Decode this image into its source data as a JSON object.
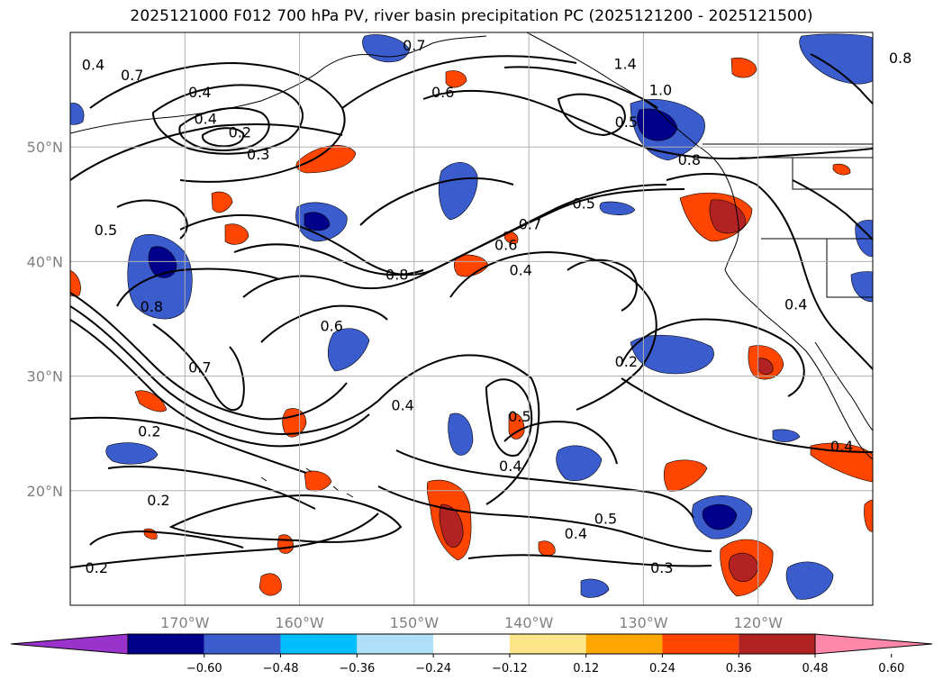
{
  "title": "2025121000 F012 700 hPa PV, river basin precipitation PC (2025121200 - 2025121500)",
  "map": {
    "lon_range": [
      -180,
      -110
    ],
    "lat_range": [
      10,
      60
    ],
    "lat_ticks": [
      {
        "lat": 50,
        "label": "50°N"
      },
      {
        "lat": 40,
        "label": "40°N"
      },
      {
        "lat": 30,
        "label": "30°N"
      },
      {
        "lat": 20,
        "label": "20°N"
      }
    ],
    "lon_ticks": [
      {
        "lon": -170,
        "label": "170°W"
      },
      {
        "lon": -160,
        "label": "160°W"
      },
      {
        "lon": -150,
        "label": "150°W"
      },
      {
        "lon": -140,
        "label": "140°W"
      },
      {
        "lon": -130,
        "label": "130°W"
      },
      {
        "lon": -120,
        "label": "120°W"
      }
    ],
    "grid": true,
    "gridline_color": "#b0b0b0",
    "contour_labels": [
      {
        "text": "0.4",
        "lon": -178.0,
        "lat": 57.2
      },
      {
        "text": "0.7",
        "lon": -174.6,
        "lat": 56.3
      },
      {
        "text": "0.4",
        "lon": -168.7,
        "lat": 54.8
      },
      {
        "text": "0.4",
        "lon": -168.2,
        "lat": 52.5
      },
      {
        "text": "0.2",
        "lon": -165.2,
        "lat": 51.3
      },
      {
        "text": "0.3",
        "lon": -163.6,
        "lat": 49.4
      },
      {
        "text": "0.7",
        "lon": -150.0,
        "lat": 58.9
      },
      {
        "text": "0.6",
        "lon": -147.5,
        "lat": 54.8
      },
      {
        "text": "1.4",
        "lon": -131.6,
        "lat": 57.3
      },
      {
        "text": "1.0",
        "lon": -128.5,
        "lat": 55.0
      },
      {
        "text": "0.5",
        "lon": -131.5,
        "lat": 52.2
      },
      {
        "text": "0.8",
        "lon": -126.0,
        "lat": 48.9
      },
      {
        "text": "0.8",
        "lon": -107.6,
        "lat": 57.8
      },
      {
        "text": "0.5",
        "lon": -135.2,
        "lat": 45.1
      },
      {
        "text": "0.7",
        "lon": -139.9,
        "lat": 43.3
      },
      {
        "text": "0.6",
        "lon": -142.0,
        "lat": 41.5
      },
      {
        "text": "0.4",
        "lon": -140.7,
        "lat": 39.3
      },
      {
        "text": "0.8",
        "lon": -151.5,
        "lat": 38.9
      },
      {
        "text": "0.5",
        "lon": -176.9,
        "lat": 42.8
      },
      {
        "text": "0.8",
        "lon": -172.9,
        "lat": 36.1
      },
      {
        "text": "0.6",
        "lon": -157.2,
        "lat": 34.4
      },
      {
        "text": "0.7",
        "lon": -168.7,
        "lat": 30.8
      },
      {
        "text": "0.2",
        "lon": -173.1,
        "lat": 25.2
      },
      {
        "text": "0.4",
        "lon": -151.0,
        "lat": 27.5
      },
      {
        "text": "0.5",
        "lon": -140.8,
        "lat": 26.5
      },
      {
        "text": "0.4",
        "lon": -141.6,
        "lat": 22.2
      },
      {
        "text": "0.2",
        "lon": -131.5,
        "lat": 31.3
      },
      {
        "text": "0.4",
        "lon": -116.7,
        "lat": 36.3
      },
      {
        "text": "0.4",
        "lon": -112.7,
        "lat": 23.9
      },
      {
        "text": "0.2",
        "lon": -172.3,
        "lat": 19.2
      },
      {
        "text": "0.5",
        "lon": -133.3,
        "lat": 17.6
      },
      {
        "text": "0.4",
        "lon": -135.9,
        "lat": 16.3
      },
      {
        "text": "0.3",
        "lon": -128.4,
        "lat": 13.3
      },
      {
        "text": "0.2",
        "lon": -177.7,
        "lat": 13.3
      }
    ]
  },
  "colorbar": {
    "colors": [
      "#9933cc",
      "#00008b",
      "#3a5ccc",
      "#00bfff",
      "#aee0f7",
      "#ffffff",
      "#fde68a",
      "#ffa500",
      "#ff4500",
      "#b22222",
      "#ff88aa"
    ],
    "ticks": [
      "−0.60",
      "−0.48",
      "−0.36",
      "−0.24",
      "−0.12",
      "0.12",
      "0.24",
      "0.36",
      "0.48",
      "0.60"
    ]
  }
}
